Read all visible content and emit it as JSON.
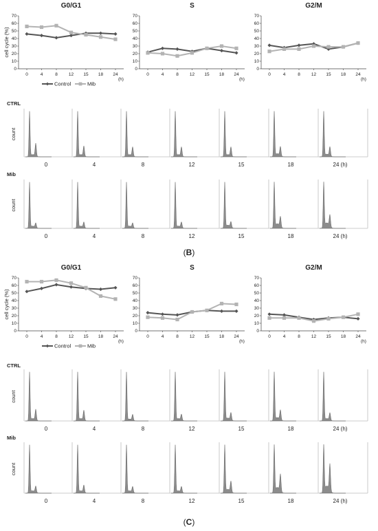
{
  "colors": {
    "control": "#555555",
    "mib": "#b3b3b3",
    "hist_fill": "#8c8c8c",
    "divider": "#c8c8c8"
  },
  "panels": [
    {
      "letter": "B",
      "open": "(",
      "close": ")"
    },
    {
      "letter": "C",
      "open": "(",
      "close": ")"
    }
  ],
  "legend": {
    "control": "Control",
    "mib": "Mib"
  },
  "hist": {
    "count_label": "count",
    "rows": [
      "CTRL",
      "Mib"
    ],
    "timepoints": [
      "0",
      "4",
      "8",
      "12",
      "15",
      "18",
      "24 (h)"
    ]
  },
  "chart_data": [
    {
      "type": "line",
      "panel": "B",
      "title": "G0/G1",
      "ylabel": "cell cycle (%)",
      "xunit": "(h)",
      "categories": [
        "0",
        "4",
        "8",
        "12",
        "15",
        "18",
        "24"
      ],
      "ylim": [
        0,
        70
      ],
      "yticks": [
        0,
        10,
        20,
        30,
        40,
        50,
        60,
        70
      ],
      "series": [
        {
          "name": "Control",
          "values": [
            46,
            44,
            41,
            44,
            47,
            47,
            46
          ]
        },
        {
          "name": "Mib",
          "values": [
            56,
            55,
            57,
            48,
            45,
            42,
            39
          ]
        }
      ]
    },
    {
      "type": "line",
      "panel": "B",
      "title": "S",
      "ylabel": "",
      "xunit": "(h)",
      "categories": [
        "0",
        "4",
        "8",
        "12",
        "15",
        "18",
        "24"
      ],
      "ylim": [
        0,
        70
      ],
      "yticks": [
        0,
        10,
        20,
        30,
        40,
        50,
        60,
        70
      ],
      "series": [
        {
          "name": "Control",
          "values": [
            22,
            27,
            26,
            23,
            27,
            24,
            21
          ]
        },
        {
          "name": "Mib",
          "values": [
            21,
            20,
            17,
            21,
            27,
            30,
            27
          ]
        }
      ]
    },
    {
      "type": "line",
      "panel": "B",
      "title": "G2/M",
      "ylabel": "",
      "xunit": "(h)",
      "categories": [
        "0",
        "4",
        "8",
        "12",
        "15",
        "18",
        "24"
      ],
      "ylim": [
        0,
        70
      ],
      "yticks": [
        0,
        10,
        20,
        30,
        40,
        50,
        60,
        70
      ],
      "series": [
        {
          "name": "Control",
          "values": [
            31,
            28,
            31,
            33,
            26,
            29,
            34
          ]
        },
        {
          "name": "Mib",
          "values": [
            23,
            26,
            26,
            30,
            29,
            29,
            34
          ]
        }
      ]
    },
    {
      "type": "line",
      "panel": "C",
      "title": "G0/G1",
      "ylabel": "cell cycle (%)",
      "xunit": "(h)",
      "categories": [
        "0",
        "4",
        "8",
        "12",
        "15",
        "18",
        "24"
      ],
      "ylim": [
        0,
        70
      ],
      "yticks": [
        0,
        10,
        20,
        30,
        40,
        50,
        60,
        70
      ],
      "series": [
        {
          "name": "Control",
          "values": [
            52,
            56,
            61,
            58,
            56,
            55,
            57
          ]
        },
        {
          "name": "Mib",
          "values": [
            65,
            65,
            67,
            63,
            57,
            46,
            42
          ]
        }
      ]
    },
    {
      "type": "line",
      "panel": "C",
      "title": "S",
      "ylabel": "",
      "xunit": "(h)",
      "categories": [
        "0",
        "4",
        "8",
        "12",
        "15",
        "18",
        "24"
      ],
      "ylim": [
        0,
        70
      ],
      "yticks": [
        0,
        10,
        20,
        30,
        40,
        50,
        60,
        70
      ],
      "series": [
        {
          "name": "Control",
          "values": [
            24,
            22,
            21,
            25,
            27,
            26,
            26
          ]
        },
        {
          "name": "Mib",
          "values": [
            18,
            17,
            15,
            25,
            27,
            36,
            35
          ]
        }
      ]
    },
    {
      "type": "line",
      "panel": "C",
      "title": "G2/M",
      "ylabel": "",
      "xunit": "(h)",
      "categories": [
        "0",
        "4",
        "8",
        "12",
        "15",
        "18",
        "24"
      ],
      "ylim": [
        0,
        70
      ],
      "yticks": [
        0,
        10,
        20,
        30,
        40,
        50,
        60,
        70
      ],
      "series": [
        {
          "name": "Control",
          "values": [
            22,
            21,
            18,
            15,
            17,
            18,
            16
          ]
        },
        {
          "name": "Mib",
          "values": [
            17,
            17,
            17,
            13,
            16,
            18,
            22
          ]
        }
      ]
    }
  ]
}
